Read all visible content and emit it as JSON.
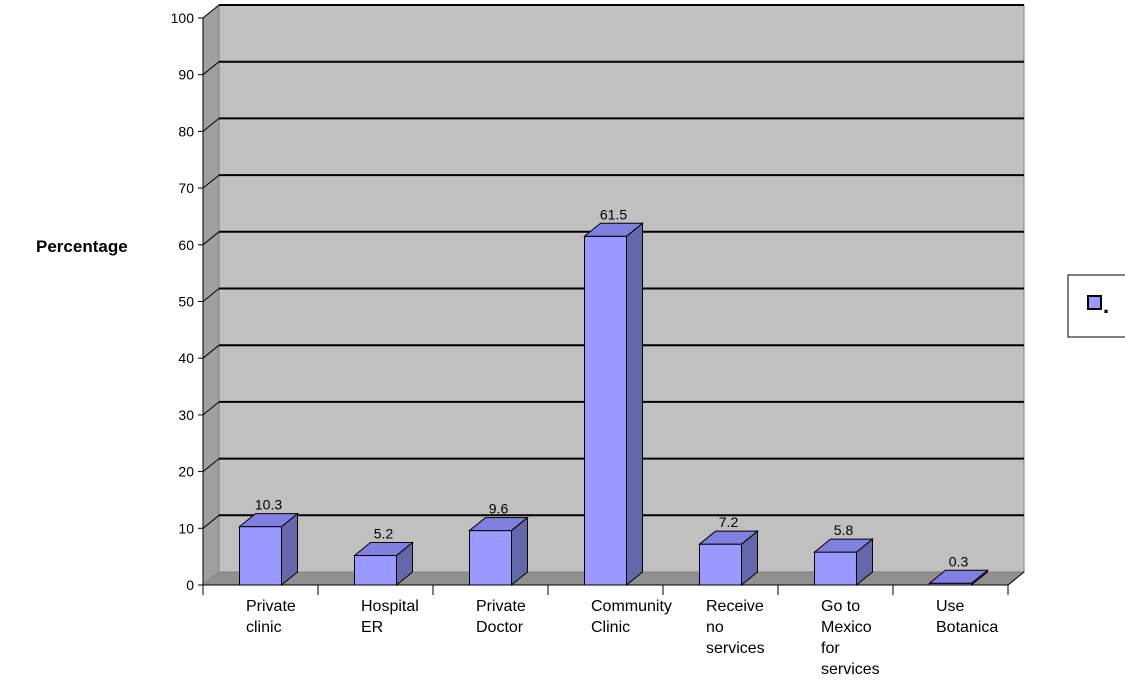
{
  "chart_data": {
    "type": "bar",
    "categories": [
      [
        "Private",
        "clinic"
      ],
      [
        "Hospital",
        "ER"
      ],
      [
        "Private",
        "Doctor"
      ],
      [
        "Community",
        "Clinic"
      ],
      [
        "Receive",
        "no",
        "services"
      ],
      [
        "Go to",
        "Mexico",
        "for",
        "services"
      ],
      [
        "Use",
        "Botanica"
      ]
    ],
    "values": [
      10.3,
      5.2,
      9.6,
      61.5,
      7.2,
      5.8,
      0.3
    ],
    "data_labels": [
      "10.3",
      "5.2",
      "9.6",
      "61.5",
      "7.2",
      "5.8",
      "0.3"
    ],
    "ylabel": "Percentage",
    "ylim": [
      0,
      100
    ],
    "yticks": [
      0,
      10,
      20,
      30,
      40,
      50,
      60,
      70,
      80,
      90,
      100
    ],
    "grid": true,
    "legend": {
      "placement": "right",
      "entries": [
        "."
      ]
    },
    "colors": {
      "bar_front": "#9999ff",
      "bar_side": "#6666aa",
      "bar_top": "#8080e0",
      "wall": "#c0c0c0",
      "wall_side": "#a0a0a0",
      "floor": "#909090"
    }
  }
}
